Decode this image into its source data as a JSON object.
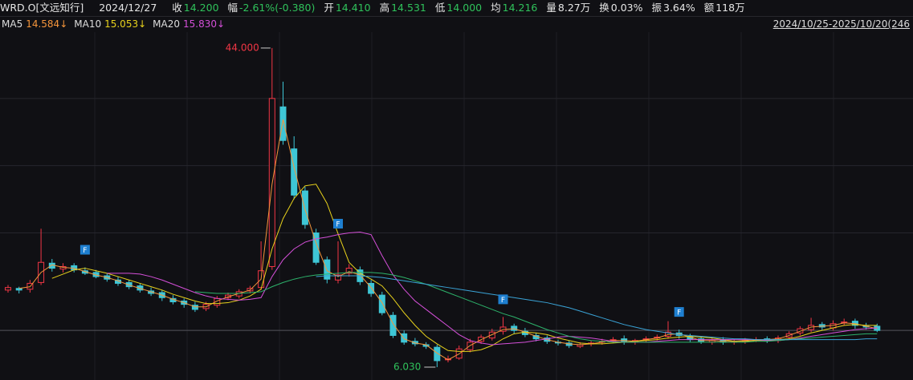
{
  "header": {
    "symbol": "WRD.O[文远知行]",
    "date": "2024/12/27",
    "items": [
      {
        "label": "收",
        "value": "14.200",
        "color": "#2fc25b"
      },
      {
        "label": "幅",
        "value": "-2.61%(-0.380)",
        "color": "#2fc25b"
      },
      {
        "label": "开",
        "value": "14.410",
        "color": "#2fc25b"
      },
      {
        "label": "高",
        "value": "14.531",
        "color": "#2fc25b"
      },
      {
        "label": "低",
        "value": "14.000",
        "color": "#2fc25b"
      },
      {
        "label": "均",
        "value": "14.216",
        "color": "#2fc25b"
      },
      {
        "label": "量",
        "value": "8.27万",
        "color": "#e6e6e6"
      },
      {
        "label": "换",
        "value": "0.03%",
        "color": "#e6e6e6"
      },
      {
        "label": "振",
        "value": "3.64%",
        "color": "#e6e6e6"
      },
      {
        "label": "额",
        "value": "118万",
        "color": "#e6e6e6"
      }
    ]
  },
  "chart_data": {
    "type": "candlestick",
    "range_label": "2024/10/25-2025/10/20(246",
    "ylim": [
      4.5,
      45.9
    ],
    "gridlines": [
      22,
      30,
      38
    ],
    "up_color": "#f23645",
    "down_color": "#3ec6d6",
    "flag_color": "#1e7fd0",
    "open": [
      15.2,
      15.4,
      15.3,
      16.1,
      18.4,
      17.7,
      18.1,
      17.5,
      17.3,
      16.9,
      16.4,
      16.1,
      15.7,
      15.1,
      14.9,
      14.2,
      13.9,
      13.4,
      13.0,
      13.4,
      14.3,
      14.5,
      15.1,
      15.5,
      18.0,
      37.0,
      32.0,
      27.0,
      22.0,
      18.8,
      16.4,
      17.2,
      17.6,
      16.0,
      14.6,
      12.2,
      10.0,
      9.1,
      8.7,
      8.4,
      6.9,
      7.1,
      8.1,
      9.1,
      9.5,
      10.3,
      10.9,
      10.3,
      9.8,
      9.5,
      9.0,
      8.9,
      8.5,
      8.8,
      9.0,
      9.2,
      9.4,
      9.0,
      9.3,
      9.5,
      9.7,
      10.1,
      9.7,
      9.4,
      9.0,
      9.3,
      9.0,
      9.1,
      9.3,
      9.4,
      9.2,
      9.6,
      10.1,
      10.5,
      11.1,
      10.7,
      11.3,
      11.5,
      10.9,
      10.9
    ],
    "high": [
      15.8,
      15.6,
      16.4,
      22.5,
      18.9,
      18.4,
      18.4,
      17.9,
      17.6,
      17.2,
      16.8,
      16.4,
      16.0,
      15.5,
      15.2,
      14.6,
      14.2,
      13.8,
      13.8,
      14.5,
      14.9,
      15.3,
      15.7,
      21.0,
      44.0,
      40.0,
      33.5,
      27.5,
      22.5,
      19.2,
      21.0,
      18.3,
      18.0,
      16.4,
      15.0,
      12.6,
      10.4,
      9.5,
      9.0,
      8.7,
      7.4,
      8.6,
      9.4,
      9.9,
      10.6,
      12.0,
      11.2,
      10.7,
      10.1,
      9.8,
      9.3,
      9.2,
      9.0,
      9.2,
      9.4,
      9.6,
      9.8,
      9.4,
      9.7,
      9.9,
      11.5,
      10.5,
      10.0,
      9.7,
      9.5,
      9.6,
      9.4,
      9.5,
      9.6,
      9.7,
      9.8,
      10.3,
      10.9,
      11.9,
      11.4,
      11.6,
      11.8,
      11.8,
      11.3,
      11.2
    ],
    "low": [
      14.9,
      14.8,
      14.9,
      15.8,
      17.4,
      17.3,
      17.3,
      17.0,
      16.6,
      16.2,
      15.7,
      15.3,
      14.9,
      14.5,
      13.9,
      13.5,
      13.1,
      12.6,
      12.7,
      13.1,
      14.0,
      14.2,
      14.8,
      15.2,
      17.6,
      32.5,
      26.0,
      22.5,
      18.2,
      16.0,
      16.0,
      16.8,
      15.8,
      14.4,
      12.2,
      9.5,
      8.7,
      8.5,
      8.2,
      6.03,
      6.6,
      6.9,
      7.8,
      8.8,
      9.2,
      9.9,
      10.0,
      9.6,
      9.1,
      8.8,
      8.6,
      8.3,
      8.3,
      8.5,
      8.7,
      8.9,
      8.7,
      8.7,
      9.0,
      9.2,
      9.4,
      9.4,
      9.0,
      8.8,
      8.7,
      8.7,
      8.7,
      8.8,
      9.0,
      8.9,
      8.9,
      9.3,
      9.8,
      10.2,
      10.4,
      10.4,
      11.0,
      10.6,
      10.5,
      10.2
    ],
    "close": [
      15.5,
      15.2,
      16.0,
      18.5,
      17.8,
      18.0,
      17.6,
      17.2,
      16.8,
      16.5,
      16.0,
      15.6,
      15.2,
      14.8,
      14.3,
      13.8,
      13.5,
      12.9,
      13.5,
      14.2,
      14.6,
      15.0,
      15.4,
      17.5,
      38.0,
      33.0,
      26.5,
      23.0,
      18.5,
      16.5,
      17.0,
      17.8,
      16.2,
      14.8,
      12.5,
      9.8,
      9.0,
      8.8,
      8.5,
      6.8,
      7.0,
      8.2,
      9.0,
      9.6,
      10.2,
      10.8,
      10.4,
      9.9,
      9.4,
      9.1,
      8.9,
      8.6,
      8.7,
      8.9,
      9.1,
      9.3,
      9.0,
      9.2,
      9.4,
      9.6,
      10.2,
      9.8,
      9.3,
      9.1,
      9.2,
      9.0,
      9.1,
      9.2,
      9.3,
      9.2,
      9.5,
      10.0,
      10.6,
      11.0,
      10.8,
      11.2,
      11.4,
      11.0,
      10.8,
      10.4
    ],
    "flags": [
      null,
      null,
      null,
      null,
      null,
      null,
      null,
      "F",
      null,
      null,
      null,
      null,
      null,
      null,
      null,
      null,
      null,
      null,
      null,
      null,
      null,
      null,
      null,
      null,
      null,
      null,
      null,
      null,
      null,
      null,
      "F",
      null,
      null,
      null,
      null,
      null,
      null,
      null,
      null,
      null,
      null,
      null,
      null,
      null,
      null,
      "F",
      null,
      null,
      null,
      null,
      null,
      null,
      null,
      null,
      null,
      null,
      null,
      null,
      null,
      null,
      null,
      "F",
      null,
      null,
      null,
      null,
      null,
      null,
      null,
      null,
      null,
      null,
      null,
      null,
      null,
      null,
      null,
      null,
      null,
      null
    ],
    "max_label": {
      "value": 44,
      "label": "44.000",
      "color": "#f23645"
    },
    "min_label": {
      "value": 6.03,
      "label": "6.030",
      "color": "#2fc25b"
    },
    "series": [
      {
        "name": "MA5",
        "legend_value": "14.584↓",
        "color": "#f5953b",
        "values": [
          null,
          15.4,
          15.6,
          17.3,
          18.2,
          17.9,
          17.8,
          17.4,
          17.0,
          16.7,
          16.3,
          15.8,
          15.4,
          15.0,
          14.6,
          14.1,
          13.7,
          13.2,
          13.2,
          13.9,
          14.4,
          14.8,
          15.2,
          16.5,
          27.8,
          35.5,
          29.8,
          24.8,
          20.8,
          17.5,
          16.8,
          17.4,
          17.0,
          15.5,
          13.7,
          11.2,
          9.4,
          8.9,
          8.7,
          7.7,
          6.9,
          7.6,
          8.6,
          9.3,
          9.9,
          10.5,
          10.6,
          10.2,
          9.7,
          9.3,
          9.0,
          8.8,
          8.7,
          8.8,
          9.0,
          9.2,
          9.2,
          9.1,
          9.3,
          9.5,
          9.9,
          10.0,
          9.6,
          9.2,
          9.2,
          9.1,
          9.1,
          9.2,
          9.3,
          9.3,
          9.4,
          9.8,
          10.3,
          10.8,
          10.9,
          11.0,
          11.3,
          11.2,
          10.9,
          10.6
        ]
      },
      {
        "name": "MA10",
        "legend_value": "15.053↓",
        "color": "#e8d21c",
        "values": [
          null,
          null,
          null,
          null,
          16.6,
          17.1,
          17.6,
          17.8,
          17.5,
          17.2,
          16.8,
          16.4,
          16.0,
          15.6,
          15.2,
          14.7,
          14.3,
          13.9,
          13.6,
          13.6,
          13.7,
          14.0,
          14.5,
          15.3,
          20.1,
          23.7,
          26.1,
          27.6,
          27.8,
          25.5,
          21.9,
          18.5,
          17.2,
          16.5,
          15.7,
          14.2,
          12.5,
          11.0,
          9.7,
          8.8,
          8.0,
          7.9,
          7.9,
          8.1,
          8.6,
          9.4,
          10.0,
          10.2,
          10.1,
          9.9,
          9.5,
          9.2,
          8.9,
          8.8,
          8.8,
          8.9,
          9.0,
          9.1,
          9.2,
          9.3,
          9.5,
          9.6,
          9.7,
          9.6,
          9.5,
          9.3,
          9.1,
          9.1,
          9.2,
          9.2,
          9.3,
          9.4,
          9.7,
          10.1,
          10.4,
          10.7,
          11.0,
          11.1,
          11.0,
          11.0
        ]
      },
      {
        "name": "MA20",
        "legend_value": "15.830↓",
        "color": "#d44fd8",
        "values": [
          null,
          null,
          null,
          null,
          null,
          null,
          null,
          null,
          null,
          17.2,
          17.2,
          17.2,
          17.1,
          16.8,
          16.4,
          15.9,
          15.4,
          14.9,
          14.5,
          14.2,
          14.1,
          14.0,
          14.1,
          14.3,
          16.8,
          18.8,
          20.1,
          20.9,
          21.3,
          21.5,
          21.8,
          22.0,
          22.1,
          21.8,
          19.3,
          17.0,
          15.3,
          13.9,
          12.9,
          11.9,
          10.9,
          9.9,
          9.2,
          8.9,
          8.7,
          8.8,
          8.9,
          9.0,
          9.2,
          9.4,
          9.6,
          9.7,
          9.6,
          9.5,
          9.3,
          9.1,
          9.0,
          9.0,
          9.0,
          9.1,
          9.2,
          9.3,
          9.3,
          9.3,
          9.3,
          9.3,
          9.3,
          9.3,
          9.3,
          9.2,
          9.2,
          9.3,
          9.5,
          9.7,
          9.9,
          10.1,
          10.3,
          10.5,
          10.6,
          10.7
        ]
      },
      {
        "color": "#2db36b",
        "values": [
          null,
          null,
          null,
          null,
          null,
          null,
          null,
          null,
          null,
          null,
          null,
          null,
          null,
          null,
          null,
          null,
          null,
          15.0,
          14.9,
          14.8,
          14.8,
          14.8,
          14.9,
          15.0,
          15.6,
          16.1,
          16.5,
          16.8,
          17.0,
          17.1,
          17.2,
          17.3,
          17.3,
          17.3,
          17.2,
          17.0,
          16.7,
          16.3,
          15.9,
          15.4,
          14.9,
          14.4,
          13.9,
          13.4,
          12.9,
          12.4,
          12.0,
          11.5,
          11.0,
          10.5,
          10.1,
          9.7,
          9.4,
          9.2,
          9.1,
          9.0,
          9.0,
          9.0,
          9.0,
          9.0,
          9.0,
          9.0,
          9.0,
          9.0,
          9.0,
          9.0,
          9.0,
          9.0,
          9.1,
          9.1,
          9.2,
          9.3,
          9.4,
          9.5,
          9.6,
          9.7,
          9.8,
          9.9,
          10.0,
          10.0
        ]
      },
      {
        "color": "#3aa3d6",
        "values": [
          null,
          null,
          null,
          null,
          null,
          null,
          null,
          null,
          null,
          null,
          null,
          null,
          null,
          null,
          null,
          null,
          null,
          null,
          null,
          null,
          null,
          null,
          null,
          null,
          null,
          null,
          null,
          null,
          16.8,
          16.9,
          16.9,
          16.9,
          16.9,
          16.8,
          16.7,
          16.5,
          16.3,
          16.1,
          15.9,
          15.7,
          15.5,
          15.3,
          15.1,
          14.9,
          14.7,
          14.5,
          14.3,
          14.1,
          13.9,
          13.7,
          13.4,
          13.1,
          12.7,
          12.3,
          11.9,
          11.5,
          11.1,
          10.8,
          10.5,
          10.3,
          10.1,
          9.9,
          9.8,
          9.7,
          9.6,
          9.5,
          9.4,
          9.4,
          9.3,
          9.3,
          9.3,
          9.3,
          9.3,
          9.3,
          9.3,
          9.3,
          9.3,
          9.3,
          9.4,
          9.4
        ]
      }
    ]
  }
}
